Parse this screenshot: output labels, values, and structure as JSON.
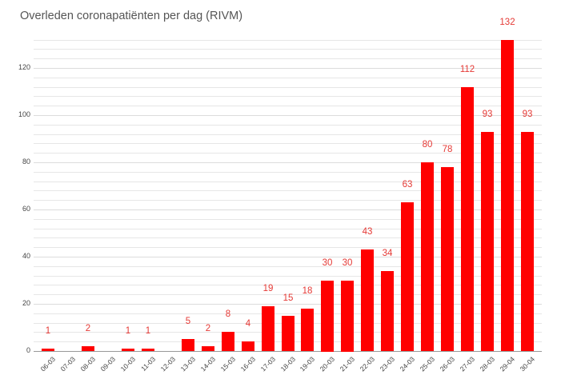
{
  "chart_data": {
    "type": "bar",
    "title": "Overleden coronapatiënten per dag (RIVM)",
    "xlabel": "",
    "ylabel": "",
    "categories": [
      "06-03",
      "07-03",
      "08-03",
      "09-03",
      "10-03",
      "11-03",
      "12-03",
      "13-03",
      "14-03",
      "15-03",
      "16-03",
      "17-03",
      "18-03",
      "19-03",
      "20-03",
      "21-03",
      "22-03",
      "23-03",
      "24-03",
      "25-03",
      "26-03",
      "27-03",
      "28-03",
      "29-04",
      "30-04"
    ],
    "values": [
      1,
      0,
      2,
      0,
      1,
      1,
      0,
      5,
      2,
      8,
      4,
      19,
      15,
      18,
      30,
      30,
      43,
      34,
      63,
      80,
      78,
      112,
      93,
      132,
      93
    ],
    "data_labels": [
      "1",
      "",
      "2",
      "",
      "1",
      "1",
      "",
      "5",
      "2",
      "8",
      "4",
      "19",
      "15",
      "18",
      "30",
      "30",
      "43",
      "34",
      "63",
      "80",
      "78",
      "112",
      "93",
      "132",
      "93"
    ],
    "yticks": [
      0,
      20,
      40,
      60,
      80,
      100,
      120
    ],
    "ylim": [
      0,
      132
    ],
    "grid": true,
    "minor_grid_step": 4,
    "legend": null,
    "bar_color": "#ff0000",
    "label_color": "#e53935"
  }
}
